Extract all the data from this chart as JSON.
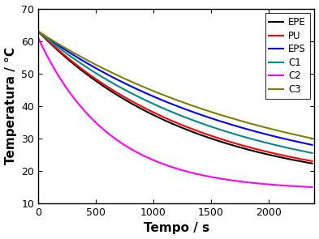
{
  "title": "",
  "xlabel": "Tempo / s",
  "ylabel": "Temperatura / °C",
  "xlim": [
    0,
    2400
  ],
  "ylim": [
    10,
    70
  ],
  "xticks": [
    0,
    500,
    1000,
    1500,
    2000
  ],
  "yticks": [
    10,
    20,
    30,
    40,
    50,
    60,
    70
  ],
  "series": {
    "EPE": {
      "color": "#000000",
      "T0": 63.0,
      "T_end": 22.3,
      "tau_factor": 1.0
    },
    "PU": {
      "color": "#ff0000",
      "T0": 63.0,
      "T_end": 23.0,
      "tau_factor": 1.0
    },
    "EPS": {
      "color": "#0000ff",
      "T0": 63.0,
      "T_end": 28.0,
      "tau_factor": 1.0
    },
    "C1": {
      "color": "#008b8b",
      "T0": 63.0,
      "T_end": 25.5,
      "tau_factor": 1.0
    },
    "C2": {
      "color": "#ff00ff",
      "T0": 61.0,
      "T_end": 15.0,
      "tau_factor": 1.0
    },
    "C3": {
      "color": "#808000",
      "T0": 63.0,
      "T_end": 30.0,
      "tau_factor": 1.0
    }
  },
  "ambient_temp": 14.0,
  "t_max": 2380,
  "legend_fontsize": 8.5,
  "axis_label_fontsize": 11,
  "tick_fontsize": 9,
  "linewidth": 1.5
}
